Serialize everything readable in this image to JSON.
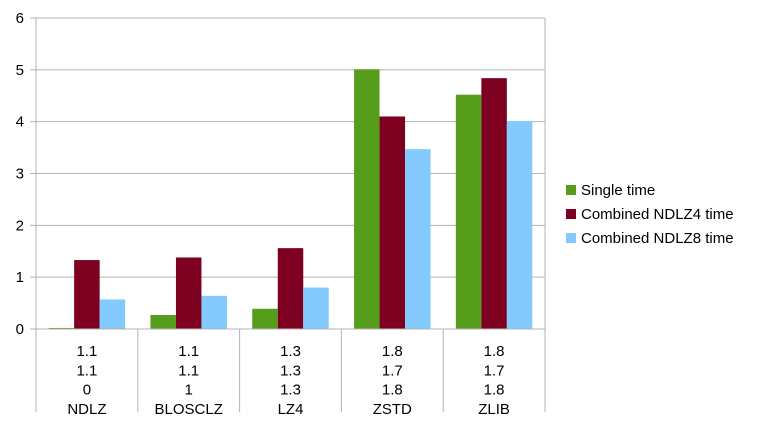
{
  "chart_data": {
    "type": "bar",
    "title": "",
    "xlabel": "",
    "ylabel": "",
    "ylim": [
      0,
      6
    ],
    "yticks": [
      "0",
      "1",
      "2",
      "3",
      "4",
      "5",
      "6"
    ],
    "grid": true,
    "legend_position": "right",
    "categories": [
      {
        "lines": [
          "1.1",
          "1.1",
          "0",
          "NDLZ"
        ]
      },
      {
        "lines": [
          "1.1",
          "1.1",
          "1",
          "BLOSCLZ"
        ]
      },
      {
        "lines": [
          "1.3",
          "1.3",
          "1.3",
          "LZ4"
        ]
      },
      {
        "lines": [
          "1.8",
          "1.7",
          "1.8",
          "ZSTD"
        ]
      },
      {
        "lines": [
          "1.8",
          "1.7",
          "1.8",
          "ZLIB"
        ]
      }
    ],
    "series": [
      {
        "name": "Single time",
        "color": "#579d1c",
        "values": [
          0.02,
          0.27,
          0.39,
          5.01,
          4.52
        ]
      },
      {
        "name": "Combined NDLZ4 time",
        "color": "#7e0021",
        "values": [
          1.33,
          1.38,
          1.56,
          4.1,
          4.84
        ]
      },
      {
        "name": "Combined NDLZ8 time",
        "color": "#83caff",
        "values": [
          0.57,
          0.64,
          0.8,
          3.47,
          4.01
        ]
      }
    ]
  }
}
